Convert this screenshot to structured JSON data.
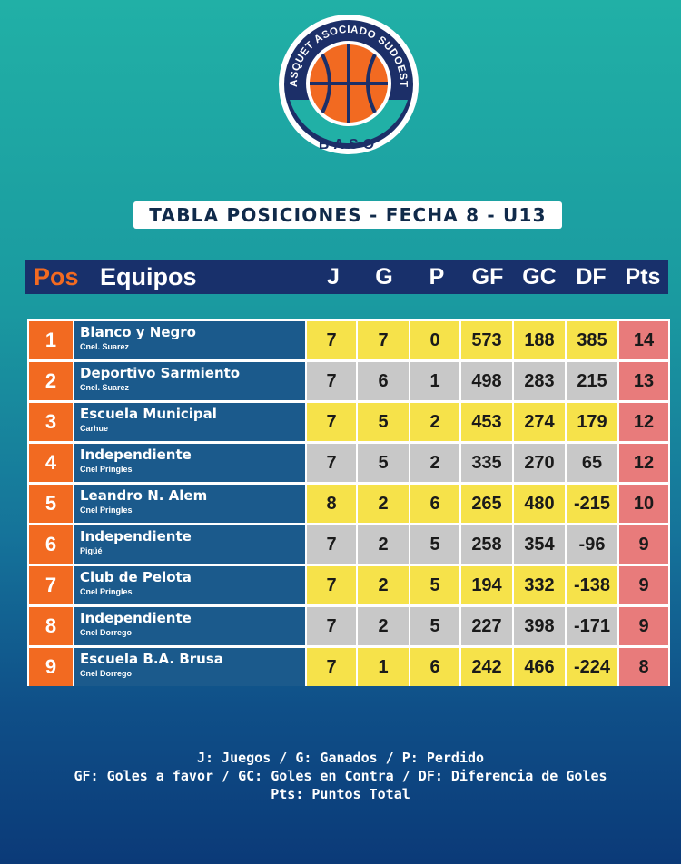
{
  "logo": {
    "top_text": "BASQUET ASOCIADO SUDOESTE",
    "bottom_text": "BASO",
    "colors": {
      "ring": "#1c2f68",
      "ball": "#f26a21",
      "teal": "#21b0a6"
    }
  },
  "title": "TABLA POSICIONES - FECHA 8 - U13",
  "header": {
    "pos": "Pos",
    "equipos": "Equipos",
    "cols": [
      "J",
      "G",
      "P",
      "GF",
      "GC",
      "DF",
      "Pts"
    ]
  },
  "rows": [
    {
      "pos": "1",
      "team": "Blanco y Negro",
      "city": "Cnel. Suarez",
      "j": "7",
      "g": "7",
      "p": "0",
      "gf": "573",
      "gc": "188",
      "df": "385",
      "pts": "14"
    },
    {
      "pos": "2",
      "team": "Deportivo Sarmiento",
      "city": "Cnel. Suarez",
      "j": "7",
      "g": "6",
      "p": "1",
      "gf": "498",
      "gc": "283",
      "df": "215",
      "pts": "13"
    },
    {
      "pos": "3",
      "team": "Escuela Municipal",
      "city": "Carhue",
      "j": "7",
      "g": "5",
      "p": "2",
      "gf": "453",
      "gc": "274",
      "df": "179",
      "pts": "12"
    },
    {
      "pos": "4",
      "team": "Independiente",
      "city": "Cnel Pringles",
      "j": "7",
      "g": "5",
      "p": "2",
      "gf": "335",
      "gc": "270",
      "df": "65",
      "pts": "12"
    },
    {
      "pos": "5",
      "team": "Leandro N. Alem",
      "city": "Cnel Pringles",
      "j": "8",
      "g": "2",
      "p": "6",
      "gf": "265",
      "gc": "480",
      "df": "-215",
      "pts": "10"
    },
    {
      "pos": "6",
      "team": "Independiente",
      "city": "Pigüé",
      "j": "7",
      "g": "2",
      "p": "5",
      "gf": "258",
      "gc": "354",
      "df": "-96",
      "pts": "9"
    },
    {
      "pos": "7",
      "team": "Club de Pelota",
      "city": "Cnel Pringles",
      "j": "7",
      "g": "2",
      "p": "5",
      "gf": "194",
      "gc": "332",
      "df": "-138",
      "pts": "9"
    },
    {
      "pos": "8",
      "team": "Independiente",
      "city": "Cnel Dorrego",
      "j": "7",
      "g": "2",
      "p": "5",
      "gf": "227",
      "gc": "398",
      "df": "-171",
      "pts": "9"
    },
    {
      "pos": "9",
      "team": "Escuela B.A. Brusa",
      "city": "Cnel Dorrego",
      "j": "7",
      "g": "1",
      "p": "6",
      "gf": "242",
      "gc": "466",
      "df": "-224",
      "pts": "8"
    }
  ],
  "colors": {
    "pos": "#f26a21",
    "team": "#1b5a8c",
    "odd_stat": "#f6e24a",
    "even_stat": "#c8c8c8",
    "pts": "#e87b7b",
    "header": "#18306b"
  },
  "legend": [
    "J: Juegos / G: Ganados / P: Perdido",
    "GF: Goles a favor / GC: Goles en Contra / DF: Diferencia de Goles",
    "Pts: Puntos Total"
  ]
}
